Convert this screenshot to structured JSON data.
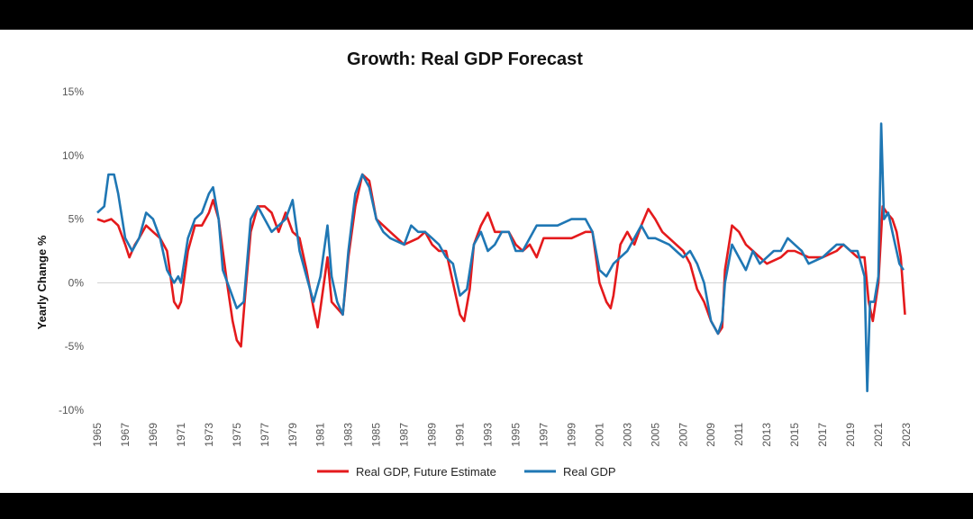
{
  "chart_data": {
    "type": "line",
    "title": "Growth: Real GDP Forecast",
    "ylabel": "Yearly Change %",
    "xlabel": "",
    "ylim": [
      -10,
      15
    ],
    "xlim": [
      1965,
      2023
    ],
    "y_ticks": [
      "15%",
      "10%",
      "5%",
      "0%",
      "-5%",
      "-10%"
    ],
    "y_tick_values": [
      15,
      10,
      5,
      0,
      -5,
      -10
    ],
    "x_ticks": [
      "1965",
      "1967",
      "1969",
      "1971",
      "1973",
      "1975",
      "1977",
      "1979",
      "1981",
      "1983",
      "1985",
      "1987",
      "1989",
      "1991",
      "1993",
      "1995",
      "1997",
      "1999",
      "2001",
      "2003",
      "2005",
      "2007",
      "2009",
      "2011",
      "2013",
      "2015",
      "2017",
      "2019",
      "2021",
      "2023"
    ],
    "legend_position": "bottom",
    "series": [
      {
        "name": "Real GDP, Future Estimate",
        "color": "#e41a1c",
        "points": [
          [
            1965.0,
            5.0
          ],
          [
            1965.5,
            4.8
          ],
          [
            1966.0,
            5.0
          ],
          [
            1966.5,
            4.5
          ],
          [
            1967.0,
            3.0
          ],
          [
            1967.3,
            2.0
          ],
          [
            1967.7,
            3.0
          ],
          [
            1968.0,
            3.5
          ],
          [
            1968.5,
            4.5
          ],
          [
            1969.0,
            4.0
          ],
          [
            1969.5,
            3.5
          ],
          [
            1970.0,
            2.5
          ],
          [
            1970.5,
            -1.5
          ],
          [
            1970.8,
            -2.0
          ],
          [
            1971.0,
            -1.5
          ],
          [
            1971.5,
            2.5
          ],
          [
            1972.0,
            4.5
          ],
          [
            1972.5,
            4.5
          ],
          [
            1973.0,
            5.5
          ],
          [
            1973.3,
            6.5
          ],
          [
            1973.7,
            5.0
          ],
          [
            1974.0,
            2.5
          ],
          [
            1974.3,
            0.0
          ],
          [
            1974.7,
            -3.0
          ],
          [
            1975.0,
            -4.5
          ],
          [
            1975.3,
            -5.0
          ],
          [
            1975.6,
            -1.0
          ],
          [
            1976.0,
            4.0
          ],
          [
            1976.5,
            6.0
          ],
          [
            1977.0,
            6.0
          ],
          [
            1977.5,
            5.5
          ],
          [
            1978.0,
            4.0
          ],
          [
            1978.5,
            5.5
          ],
          [
            1979.0,
            4.0
          ],
          [
            1979.5,
            3.5
          ],
          [
            1980.0,
            1.0
          ],
          [
            1980.5,
            -2.0
          ],
          [
            1980.8,
            -3.5
          ],
          [
            1981.0,
            -2.0
          ],
          [
            1981.5,
            2.0
          ],
          [
            1981.8,
            -1.5
          ],
          [
            1982.2,
            -2.0
          ],
          [
            1982.6,
            -2.5
          ],
          [
            1983.0,
            2.0
          ],
          [
            1983.5,
            6.0
          ],
          [
            1984.0,
            8.5
          ],
          [
            1984.5,
            8.0
          ],
          [
            1985.0,
            5.0
          ],
          [
            1985.5,
            4.5
          ],
          [
            1986.0,
            4.0
          ],
          [
            1987.0,
            3.0
          ],
          [
            1988.0,
            3.5
          ],
          [
            1988.5,
            4.0
          ],
          [
            1989.0,
            3.0
          ],
          [
            1989.5,
            2.5
          ],
          [
            1990.0,
            2.5
          ],
          [
            1990.5,
            0.0
          ],
          [
            1991.0,
            -2.5
          ],
          [
            1991.3,
            -3.0
          ],
          [
            1991.7,
            -0.5
          ],
          [
            1992.0,
            3.0
          ],
          [
            1992.5,
            4.5
          ],
          [
            1993.0,
            5.5
          ],
          [
            1993.5,
            4.0
          ],
          [
            1994.0,
            4.0
          ],
          [
            1994.5,
            4.0
          ],
          [
            1995.0,
            3.0
          ],
          [
            1995.5,
            2.5
          ],
          [
            1996.0,
            3.0
          ],
          [
            1996.5,
            2.0
          ],
          [
            1997.0,
            3.5
          ],
          [
            1998.0,
            3.5
          ],
          [
            1999.0,
            3.5
          ],
          [
            2000.0,
            4.0
          ],
          [
            2000.5,
            4.0
          ],
          [
            2001.0,
            0.0
          ],
          [
            2001.5,
            -1.5
          ],
          [
            2001.8,
            -2.0
          ],
          [
            2002.0,
            -1.0
          ],
          [
            2002.5,
            3.0
          ],
          [
            2003.0,
            4.0
          ],
          [
            2003.5,
            3.0
          ],
          [
            2004.0,
            4.5
          ],
          [
            2004.5,
            5.8
          ],
          [
            2005.0,
            5.0
          ],
          [
            2005.5,
            4.0
          ],
          [
            2006.0,
            3.5
          ],
          [
            2007.0,
            2.5
          ],
          [
            2007.5,
            1.5
          ],
          [
            2008.0,
            -0.5
          ],
          [
            2008.5,
            -1.5
          ],
          [
            2009.0,
            -3.0
          ],
          [
            2009.5,
            -4.0
          ],
          [
            2009.8,
            -3.5
          ],
          [
            2010.0,
            1.0
          ],
          [
            2010.5,
            4.5
          ],
          [
            2011.0,
            4.0
          ],
          [
            2011.5,
            3.0
          ],
          [
            2012.0,
            2.5
          ],
          [
            2012.5,
            2.0
          ],
          [
            2013.0,
            1.5
          ],
          [
            2014.0,
            2.0
          ],
          [
            2014.5,
            2.5
          ],
          [
            2015.0,
            2.5
          ],
          [
            2016.0,
            2.0
          ],
          [
            2017.0,
            2.0
          ],
          [
            2018.0,
            2.5
          ],
          [
            2018.5,
            3.0
          ],
          [
            2019.0,
            2.5
          ],
          [
            2019.5,
            2.0
          ],
          [
            2020.0,
            2.0
          ],
          [
            2020.3,
            -1.5
          ],
          [
            2020.6,
            -3.0
          ],
          [
            2021.0,
            0.0
          ],
          [
            2021.3,
            6.0
          ],
          [
            2021.6,
            5.5
          ],
          [
            2022.0,
            5.0
          ],
          [
            2022.3,
            4.0
          ],
          [
            2022.6,
            2.0
          ],
          [
            2022.9,
            -2.5
          ]
        ]
      },
      {
        "name": "Real GDP",
        "color": "#1f77b4",
        "points": [
          [
            1965.0,
            5.5
          ],
          [
            1965.5,
            6.0
          ],
          [
            1965.8,
            8.5
          ],
          [
            1966.2,
            8.5
          ],
          [
            1966.5,
            7.0
          ],
          [
            1967.0,
            3.5
          ],
          [
            1967.5,
            2.5
          ],
          [
            1968.0,
            3.5
          ],
          [
            1968.5,
            5.5
          ],
          [
            1969.0,
            5.0
          ],
          [
            1969.5,
            3.5
          ],
          [
            1970.0,
            1.0
          ],
          [
            1970.5,
            0.0
          ],
          [
            1970.8,
            0.5
          ],
          [
            1971.0,
            0.0
          ],
          [
            1971.5,
            3.5
          ],
          [
            1972.0,
            5.0
          ],
          [
            1972.5,
            5.5
          ],
          [
            1973.0,
            7.0
          ],
          [
            1973.3,
            7.5
          ],
          [
            1973.7,
            5.0
          ],
          [
            1974.0,
            1.0
          ],
          [
            1974.5,
            -0.5
          ],
          [
            1975.0,
            -2.0
          ],
          [
            1975.5,
            -1.5
          ],
          [
            1976.0,
            5.0
          ],
          [
            1976.5,
            6.0
          ],
          [
            1977.0,
            5.0
          ],
          [
            1977.5,
            4.0
          ],
          [
            1978.0,
            4.5
          ],
          [
            1978.5,
            5.0
          ],
          [
            1979.0,
            6.5
          ],
          [
            1979.5,
            2.5
          ],
          [
            1980.0,
            0.5
          ],
          [
            1980.5,
            -1.5
          ],
          [
            1981.0,
            0.5
          ],
          [
            1981.5,
            4.5
          ],
          [
            1981.8,
            0.5
          ],
          [
            1982.2,
            -1.5
          ],
          [
            1982.6,
            -2.5
          ],
          [
            1983.0,
            2.5
          ],
          [
            1983.5,
            7.0
          ],
          [
            1984.0,
            8.5
          ],
          [
            1984.5,
            7.5
          ],
          [
            1985.0,
            5.0
          ],
          [
            1985.5,
            4.0
          ],
          [
            1986.0,
            3.5
          ],
          [
            1987.0,
            3.0
          ],
          [
            1987.5,
            4.5
          ],
          [
            1988.0,
            4.0
          ],
          [
            1988.5,
            4.0
          ],
          [
            1989.0,
            3.5
          ],
          [
            1989.5,
            3.0
          ],
          [
            1990.0,
            2.0
          ],
          [
            1990.5,
            1.5
          ],
          [
            1991.0,
            -1.0
          ],
          [
            1991.5,
            -0.5
          ],
          [
            1992.0,
            3.0
          ],
          [
            1992.5,
            4.0
          ],
          [
            1993.0,
            2.5
          ],
          [
            1993.5,
            3.0
          ],
          [
            1994.0,
            4.0
          ],
          [
            1994.5,
            4.0
          ],
          [
            1995.0,
            2.5
          ],
          [
            1995.5,
            2.5
          ],
          [
            1996.0,
            3.5
          ],
          [
            1996.5,
            4.5
          ],
          [
            1997.0,
            4.5
          ],
          [
            1998.0,
            4.5
          ],
          [
            1999.0,
            5.0
          ],
          [
            2000.0,
            5.0
          ],
          [
            2000.5,
            4.0
          ],
          [
            2001.0,
            1.0
          ],
          [
            2001.5,
            0.5
          ],
          [
            2002.0,
            1.5
          ],
          [
            2002.5,
            2.0
          ],
          [
            2003.0,
            2.5
          ],
          [
            2003.5,
            3.5
          ],
          [
            2004.0,
            4.5
          ],
          [
            2004.5,
            3.5
          ],
          [
            2005.0,
            3.5
          ],
          [
            2006.0,
            3.0
          ],
          [
            2006.5,
            2.5
          ],
          [
            2007.0,
            2.0
          ],
          [
            2007.5,
            2.5
          ],
          [
            2008.0,
            1.5
          ],
          [
            2008.5,
            0.0
          ],
          [
            2009.0,
            -3.0
          ],
          [
            2009.5,
            -4.0
          ],
          [
            2009.8,
            -3.0
          ],
          [
            2010.0,
            0.0
          ],
          [
            2010.5,
            3.0
          ],
          [
            2011.0,
            2.0
          ],
          [
            2011.5,
            1.0
          ],
          [
            2012.0,
            2.5
          ],
          [
            2012.5,
            1.5
          ],
          [
            2013.0,
            2.0
          ],
          [
            2013.5,
            2.5
          ],
          [
            2014.0,
            2.5
          ],
          [
            2014.5,
            3.5
          ],
          [
            2015.0,
            3.0
          ],
          [
            2015.5,
            2.5
          ],
          [
            2016.0,
            1.5
          ],
          [
            2017.0,
            2.0
          ],
          [
            2017.5,
            2.5
          ],
          [
            2018.0,
            3.0
          ],
          [
            2018.5,
            3.0
          ],
          [
            2019.0,
            2.5
          ],
          [
            2019.5,
            2.5
          ],
          [
            2020.0,
            0.5
          ],
          [
            2020.2,
            -8.5
          ],
          [
            2020.4,
            -1.5
          ],
          [
            2020.7,
            -1.5
          ],
          [
            2021.0,
            0.5
          ],
          [
            2021.2,
            12.5
          ],
          [
            2021.4,
            5.0
          ],
          [
            2021.7,
            5.5
          ],
          [
            2022.0,
            4.0
          ],
          [
            2022.3,
            2.5
          ],
          [
            2022.5,
            1.5
          ],
          [
            2022.8,
            1.0
          ]
        ]
      }
    ]
  }
}
